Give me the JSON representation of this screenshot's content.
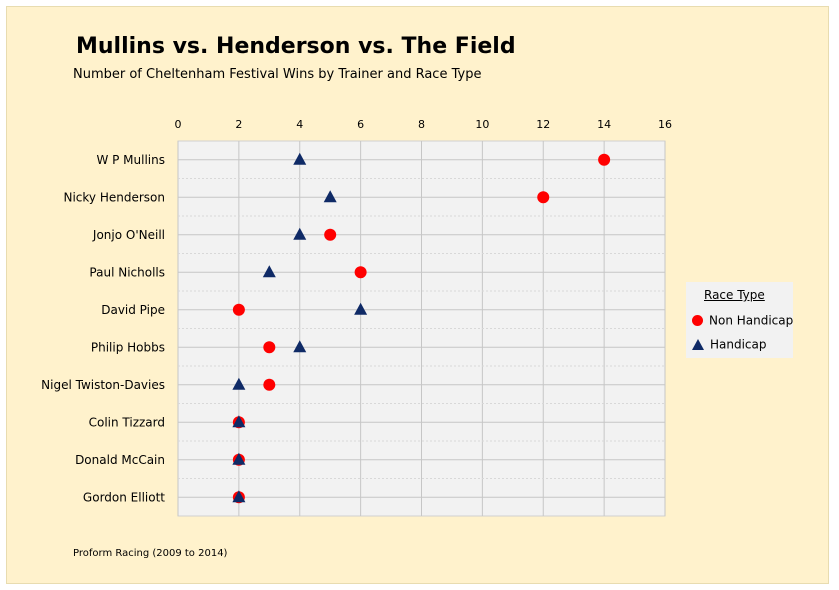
{
  "title": "Mullins vs. Henderson vs. The Field",
  "subtitle": "Number of Cheltenham Festival Wins by Trainer and Race Type",
  "source": "Proform Racing (2009 to 2014)",
  "legend": {
    "title": "Race Type",
    "items": [
      "Non Handicap",
      "Handicap"
    ]
  },
  "colors": {
    "non_handicap": "#ff0000",
    "handicap": "#0f2a66",
    "background": "#fff2cc",
    "plot_background": "#f2f2f2",
    "grid": "#c6c6c6"
  },
  "chart_data": {
    "type": "scatter",
    "title": "Mullins vs. Henderson vs. The Field",
    "subtitle": "Number of Cheltenham Festival Wins by Trainer and Race Type",
    "xlim": [
      0,
      16
    ],
    "x_ticks": [
      "0",
      "2",
      "4",
      "6",
      "8",
      "10",
      "12",
      "14",
      "16"
    ],
    "x_axis_position": "top",
    "grid": true,
    "legend_position": "right",
    "categories": [
      "W P Mullins",
      "Nicky Henderson",
      "Jonjo O'Neill",
      "Paul Nicholls",
      "David Pipe",
      "Philip Hobbs",
      "Nigel Twiston-Davies",
      "Colin Tizzard",
      "Donald McCain",
      "Gordon Elliott"
    ],
    "series": [
      {
        "name": "Non Handicap",
        "marker": "circle",
        "values": [
          14,
          12,
          5,
          6,
          2,
          3,
          3,
          2,
          2,
          2
        ]
      },
      {
        "name": "Handicap",
        "marker": "triangle",
        "values": [
          4,
          5,
          4,
          3,
          6,
          4,
          2,
          2,
          2,
          2
        ]
      }
    ]
  }
}
